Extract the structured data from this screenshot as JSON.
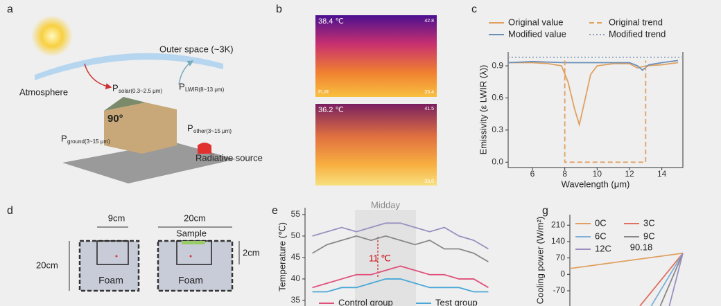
{
  "panel_letters": [
    "a",
    "b",
    "c",
    "d",
    "e",
    "g"
  ],
  "panel_a": {
    "space": "Outer space (~3K)",
    "atmosphere": "Atmosphere",
    "angle": "90°",
    "source": "Radiative source",
    "fluxes": [
      {
        "symbol": "P",
        "sub": "solar(0.3~2.5 μm)"
      },
      {
        "symbol": "P",
        "sub": "LWIR(8~13 μm)"
      },
      {
        "symbol": "P",
        "sub": "other(3~15 μm)"
      },
      {
        "symbol": "P",
        "sub": "ground(3~15 μm)"
      }
    ]
  },
  "panel_b": {
    "images": [
      {
        "temp": "38.4 ℃",
        "max": "42.8",
        "min": "33.4",
        "brand": "FLIR"
      },
      {
        "temp": "36.2 ℃",
        "max": "41.5",
        "min": "33.0"
      }
    ]
  },
  "panel_d": {
    "width1": "9cm",
    "width2": "20cm",
    "sample": "Sample",
    "height": "20cm",
    "depth": "2cm",
    "foam1": "Foam",
    "foam2": "Foam"
  },
  "chart_data": [
    {
      "type": "line",
      "xlabel": "Wavelength (μm)",
      "ylabel": "Emissivity (ε LWIR (λ))",
      "xlim": [
        4.5,
        15.3
      ],
      "xticks": [
        6,
        8,
        10,
        12,
        14
      ],
      "ylim": [
        -0.05,
        1.03
      ],
      "yticks": [
        {
          "value": 0,
          "label": "0.0"
        },
        0.3,
        0.6,
        0.9
      ],
      "series": [
        {
          "name": "Original value",
          "color": "#e0a060",
          "style": "solid",
          "x": [
            4.5,
            6,
            7,
            7.8,
            8.2,
            8.6,
            8.9,
            9.2,
            9.6,
            10,
            11,
            12,
            12.5,
            13,
            14,
            15
          ],
          "values": [
            0.93,
            0.93,
            0.92,
            0.9,
            0.75,
            0.5,
            0.35,
            0.55,
            0.82,
            0.9,
            0.92,
            0.92,
            0.88,
            0.9,
            0.91,
            0.93
          ]
        },
        {
          "name": "Modified value",
          "color": "#6a8fb8",
          "style": "solid",
          "x": [
            4.5,
            6,
            8,
            10,
            12,
            12.5,
            12.8,
            13.2,
            14,
            15
          ],
          "values": [
            0.93,
            0.94,
            0.93,
            0.93,
            0.93,
            0.9,
            0.86,
            0.91,
            0.93,
            0.95
          ]
        },
        {
          "name": "Original trend",
          "color": "#e0a060",
          "style": "dashed",
          "x": [
            8,
            8,
            13,
            13
          ],
          "values": [
            0.95,
            0,
            0,
            0.95
          ]
        },
        {
          "name": "Modified trend",
          "color": "#8aa0b8",
          "style": "dotted",
          "x": [
            4.5,
            15.3
          ],
          "values": [
            0.98,
            0.98
          ]
        }
      ]
    },
    {
      "type": "line",
      "ylabel": "Temperature (℃)",
      "annotations": [
        "Midday",
        "11 ℃"
      ],
      "categories": [
        null,
        null,
        null,
        null,
        null,
        null,
        null,
        null,
        null,
        null,
        null,
        null,
        null
      ],
      "ylim": [
        33.7,
        56.6
      ],
      "yticks": [
        35,
        40,
        45,
        50,
        55
      ],
      "series": [
        {
          "color": "#9a8fc0",
          "values": [
            50,
            51,
            52,
            51,
            52,
            53,
            53,
            52,
            51,
            52,
            50,
            49,
            47
          ]
        },
        {
          "color": "#888888",
          "values": [
            46,
            48,
            49,
            50,
            49,
            50,
            49,
            48,
            49,
            47,
            47,
            46,
            44
          ]
        },
        {
          "name": "Control group",
          "color": "#e0507a",
          "values": [
            38,
            39,
            40,
            41,
            41,
            42,
            43,
            42,
            41,
            41,
            40,
            40,
            38
          ]
        },
        {
          "name": "Test group",
          "color": "#4aa8d8",
          "values": [
            37,
            37,
            38,
            38,
            39,
            40,
            40,
            39,
            38,
            38,
            38,
            37,
            37
          ]
        }
      ]
    },
    {
      "type": "line",
      "ylabel": "Cooling power (W/m²)",
      "annotations": [
        "90.18"
      ],
      "xlim": [
        0,
        1
      ],
      "ylim": [
        -135,
        255
      ],
      "yticks": [
        -70,
        0,
        70,
        140,
        210
      ],
      "series": [
        {
          "name": "0C",
          "color": "#e0a060",
          "x": [
            0,
            1
          ],
          "values": [
            25,
            90.18
          ]
        },
        {
          "name": "3C",
          "color": "#e07060",
          "x": [
            0.62,
            1
          ],
          "values": [
            -135,
            90.18
          ]
        },
        {
          "name": "6C",
          "color": "#7fb0d8",
          "x": [
            0.72,
            1
          ],
          "values": [
            -135,
            90.18
          ]
        },
        {
          "name": "9C",
          "color": "#888888",
          "x": [
            0.8,
            1
          ],
          "values": [
            -135,
            90.18
          ]
        },
        {
          "name": "12C",
          "color": "#9a8fc0",
          "x": [
            0.88,
            1
          ],
          "values": [
            -135,
            90.18
          ]
        }
      ]
    }
  ]
}
